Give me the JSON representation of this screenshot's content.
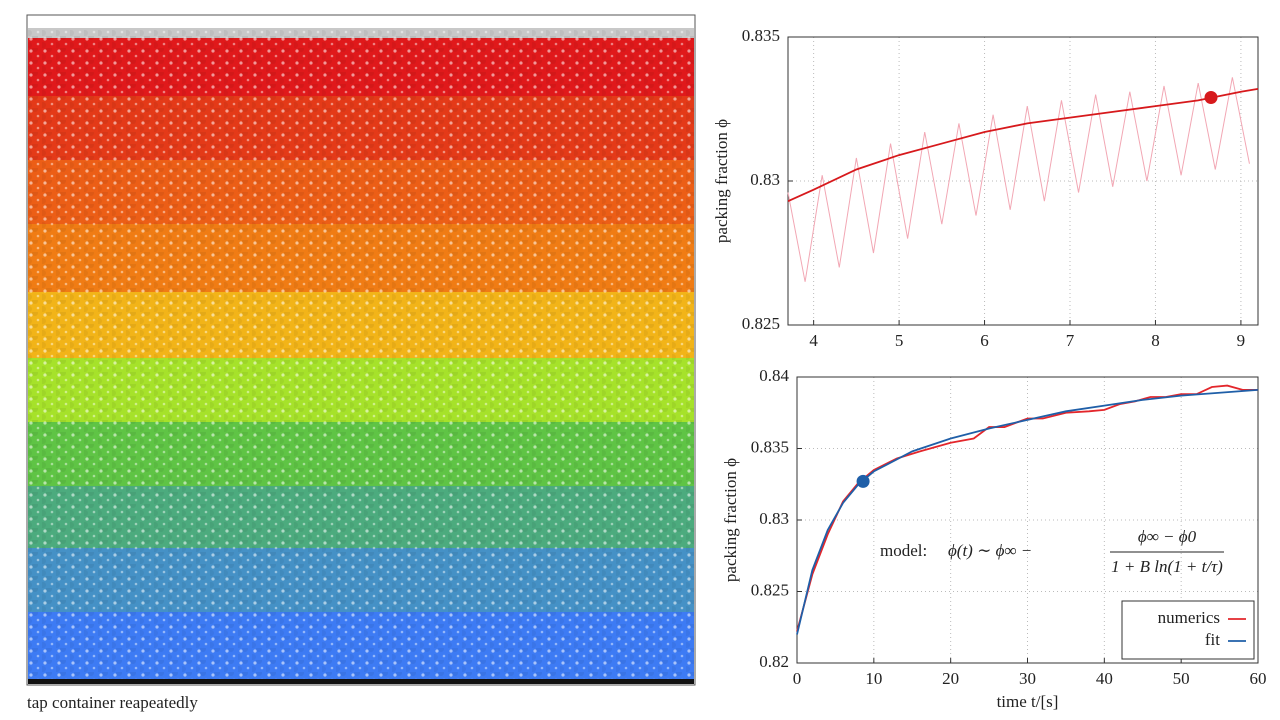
{
  "caption": "tap container reapeatedly",
  "chart_data": [
    {
      "type": "line",
      "ylabel": "packing fraction ϕ",
      "xlim": [
        3.7,
        9.2
      ],
      "xticks": [
        4,
        5,
        6,
        7,
        8,
        9
      ],
      "ylim": [
        0.825,
        0.835
      ],
      "yticks": [
        0.825,
        0.83,
        0.835
      ],
      "grid": true,
      "series": [
        {
          "color": "#f2a7b4",
          "x": [
            3.7,
            3.9,
            4.1,
            4.3,
            4.5,
            4.7,
            4.9,
            5.1,
            5.3,
            5.5,
            5.7,
            5.9,
            6.1,
            6.3,
            6.5,
            6.7,
            6.9,
            7.1,
            7.3,
            7.5,
            7.7,
            7.9,
            8.1,
            8.3,
            8.5,
            8.7,
            8.9,
            9.1
          ],
          "values": [
            0.8296,
            0.8265,
            0.8302,
            0.827,
            0.8308,
            0.8275,
            0.8313,
            0.828,
            0.8317,
            0.8285,
            0.832,
            0.8288,
            0.8323,
            0.829,
            0.8326,
            0.8293,
            0.8328,
            0.8296,
            0.833,
            0.8298,
            0.8331,
            0.83,
            0.8333,
            0.8302,
            0.8334,
            0.8304,
            0.8336,
            0.8306
          ]
        },
        {
          "color": "#d7191c",
          "x": [
            3.7,
            4,
            4.5,
            5,
            5.5,
            6,
            6.5,
            7,
            7.5,
            8,
            8.5,
            9,
            9.2
          ],
          "values": [
            0.8293,
            0.8297,
            0.8304,
            0.8309,
            0.8313,
            0.8317,
            0.832,
            0.8322,
            0.8324,
            0.8326,
            0.8328,
            0.8331,
            0.8332
          ]
        }
      ],
      "marker": {
        "x": 8.65,
        "y": 0.8329,
        "color": "#d7191c"
      }
    },
    {
      "type": "line",
      "ylabel": "packing fraction ϕ",
      "xlabel": "time t/[s]",
      "xlim": [
        0,
        60
      ],
      "xticks": [
        0,
        10,
        20,
        30,
        40,
        50,
        60
      ],
      "ylim": [
        0.82,
        0.84
      ],
      "yticks": [
        0.82,
        0.825,
        0.83,
        0.835,
        0.84
      ],
      "grid": true,
      "legend": "lower right",
      "series": [
        {
          "name": "numerics",
          "color": "#e3262b",
          "x": [
            0,
            2,
            4,
            6,
            8,
            10,
            13,
            16,
            20,
            23,
            25,
            27,
            30,
            32,
            35,
            38,
            40,
            42,
            44,
            46,
            48,
            50,
            52,
            54,
            56,
            58,
            60
          ],
          "values": [
            0.8222,
            0.8262,
            0.829,
            0.8313,
            0.8326,
            0.8335,
            0.8343,
            0.8348,
            0.8354,
            0.8357,
            0.8365,
            0.8365,
            0.8371,
            0.8371,
            0.8375,
            0.8376,
            0.8377,
            0.8381,
            0.8383,
            0.8386,
            0.8386,
            0.8388,
            0.8388,
            0.8393,
            0.8394,
            0.8391,
            0.8391
          ]
        },
        {
          "name": "fit",
          "color": "#1f5fa8",
          "x": [
            0,
            2,
            4,
            6,
            8,
            10,
            15,
            20,
            25,
            30,
            35,
            40,
            45,
            50,
            55,
            60
          ],
          "values": [
            0.822,
            0.8265,
            0.8293,
            0.8312,
            0.8325,
            0.8334,
            0.8348,
            0.8357,
            0.8364,
            0.837,
            0.8376,
            0.838,
            0.8384,
            0.8387,
            0.8389,
            0.8391
          ]
        }
      ],
      "marker": {
        "x": 8.6,
        "y": 0.8327,
        "color": "#1f5fa8"
      },
      "annotation": {
        "prefix": "model:",
        "lhs": "ϕ(t) ∼ ϕ∞ −",
        "numerator": "ϕ∞ − ϕ0",
        "denominator": "1 + B ln(1 + t/τ)"
      }
    }
  ]
}
